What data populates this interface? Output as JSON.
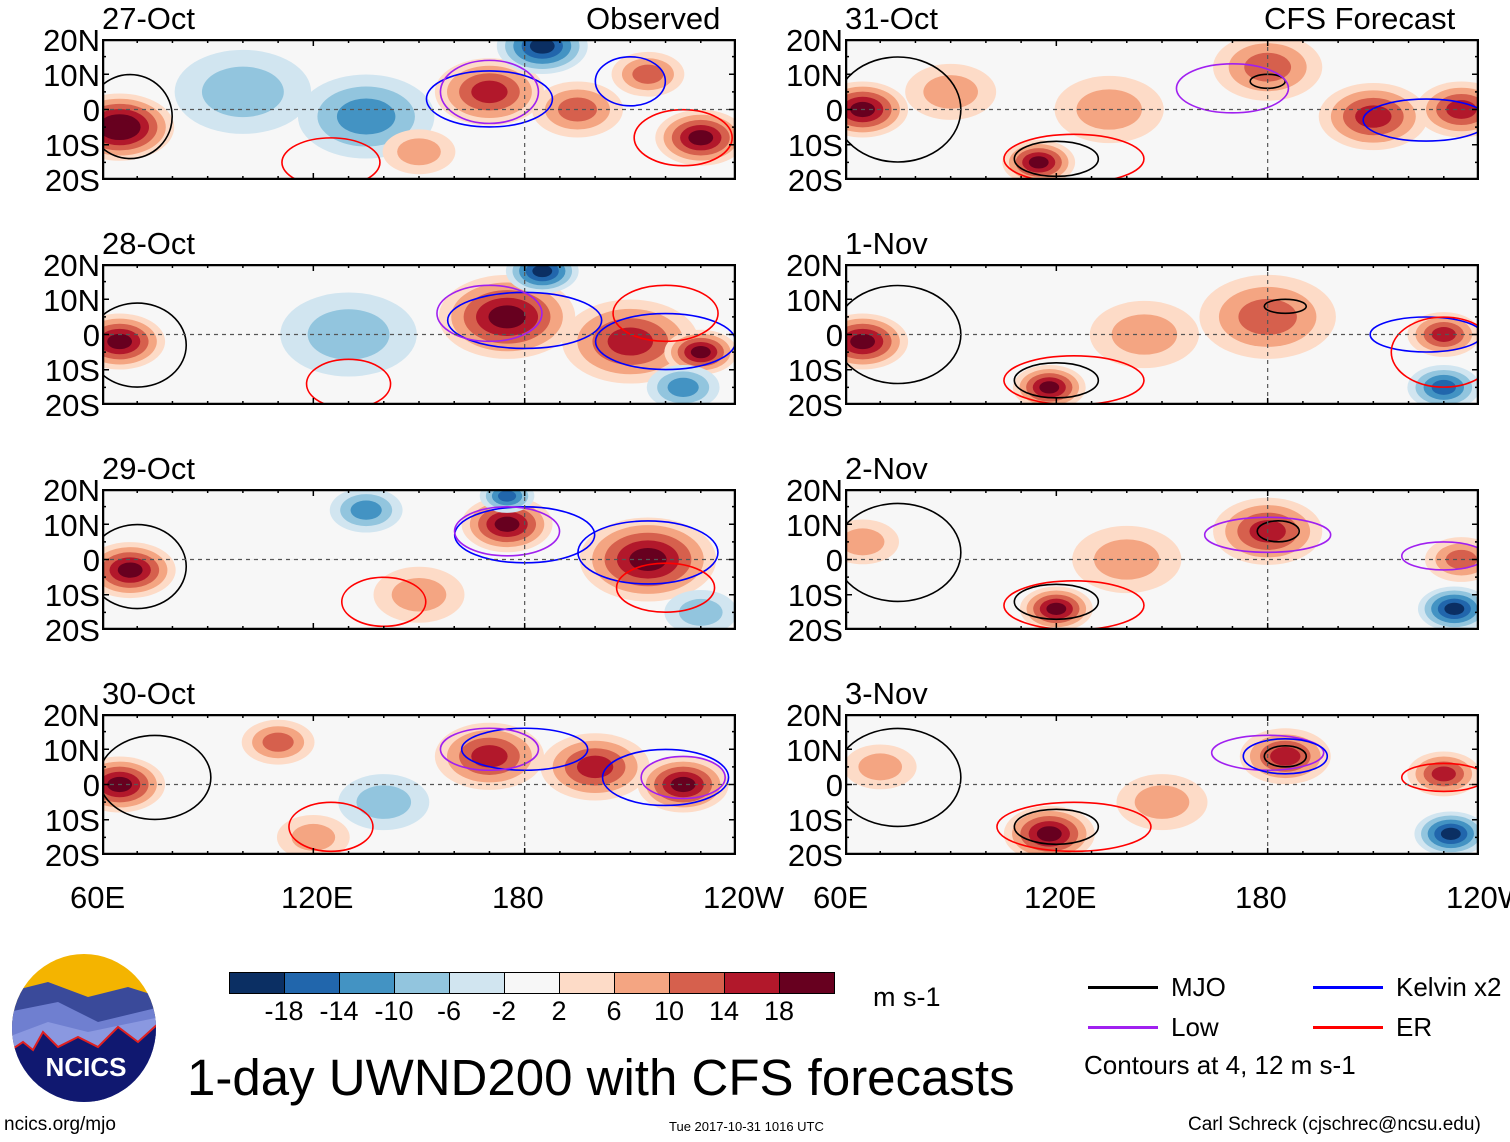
{
  "chart_data": {
    "type": "heatmap",
    "title": "1-day UWND200 with CFS forecasts",
    "units": "m s-1",
    "xlim": [
      60,
      240
    ],
    "ylim": [
      -20,
      20
    ],
    "x_ticks": [
      "60E",
      "120E",
      "180",
      "120W"
    ],
    "y_ticks": [
      "20N",
      "10N",
      "0",
      "10S",
      "20S"
    ],
    "column_labels": [
      "Observed",
      "CFS Forecast"
    ],
    "colorbar": {
      "levels": [
        -18,
        -14,
        -10,
        -6,
        -2,
        2,
        6,
        10,
        14,
        18
      ],
      "labels": [
        "-18",
        "-14",
        "-10",
        "-6",
        "-2",
        "2",
        "6",
        "10",
        "14",
        "18"
      ],
      "colors": [
        "#0b2f63",
        "#2166ac",
        "#4393c3",
        "#92c5de",
        "#d1e5f0",
        "#f7f7f7",
        "#fddbc7",
        "#f4a582",
        "#d6604d",
        "#b2182b",
        "#67001f"
      ]
    },
    "legend": [
      {
        "name": "MJO",
        "color": "#000000"
      },
      {
        "name": "Kelvin x2",
        "color": "#0000ff"
      },
      {
        "name": "Low",
        "color": "#a020f0"
      },
      {
        "name": "ER",
        "color": "#ff0000"
      }
    ],
    "contour_note": "Contours at 4, 12 m s-1",
    "panels": [
      {
        "date": "27-Oct",
        "anoms": [
          [
            65,
            -5,
            20,
            12
          ],
          [
            170,
            5,
            14,
            12
          ],
          [
            230,
            -8,
            18,
            10
          ],
          [
            215,
            10,
            8,
            8
          ],
          [
            195,
            0,
            8,
            10
          ],
          [
            185,
            18,
            -18,
            10
          ],
          [
            135,
            -2,
            -8,
            15
          ],
          [
            100,
            5,
            -6,
            15
          ],
          [
            150,
            -12,
            6,
            8
          ]
        ],
        "contours": [
          [
            68,
            -2,
            12,
            12,
            "MJO"
          ],
          [
            170,
            3,
            18,
            8,
            "Kelvin"
          ],
          [
            170,
            5,
            14,
            9,
            "Low"
          ],
          [
            225,
            -8,
            14,
            8,
            "ER"
          ],
          [
            125,
            -15,
            14,
            7,
            "ER"
          ],
          [
            210,
            8,
            10,
            7,
            "Kelvin"
          ]
        ]
      },
      {
        "date": "28-Oct",
        "anoms": [
          [
            65,
            -2,
            18,
            10
          ],
          [
            175,
            5,
            18,
            15
          ],
          [
            210,
            -2,
            14,
            15
          ],
          [
            230,
            -5,
            16,
            8
          ],
          [
            185,
            18,
            -16,
            8
          ],
          [
            130,
            0,
            -6,
            15
          ],
          [
            225,
            -15,
            -8,
            8
          ]
        ],
        "contours": [
          [
            70,
            -3,
            14,
            12,
            "MJO"
          ],
          [
            180,
            4,
            22,
            8,
            "Kelvin"
          ],
          [
            170,
            6,
            15,
            8,
            "Low"
          ],
          [
            130,
            -14,
            12,
            7,
            "ER"
          ],
          [
            220,
            -2,
            20,
            8,
            "Kelvin"
          ],
          [
            220,
            6,
            15,
            8,
            "ER"
          ]
        ]
      },
      {
        "date": "29-Oct",
        "anoms": [
          [
            68,
            -3,
            16,
            10
          ],
          [
            175,
            10,
            18,
            10
          ],
          [
            215,
            0,
            18,
            15
          ],
          [
            175,
            18,
            -14,
            6
          ],
          [
            135,
            14,
            -10,
            8
          ],
          [
            150,
            -10,
            6,
            10
          ],
          [
            230,
            -15,
            -6,
            8
          ]
        ],
        "contours": [
          [
            70,
            -2,
            14,
            12,
            "MJO"
          ],
          [
            180,
            7,
            20,
            8,
            "Kelvin"
          ],
          [
            175,
            8,
            15,
            7,
            "Low"
          ],
          [
            140,
            -12,
            12,
            7,
            "ER"
          ],
          [
            215,
            2,
            20,
            9,
            "Kelvin"
          ],
          [
            220,
            -8,
            14,
            7,
            "ER"
          ]
        ]
      },
      {
        "date": "30-Oct",
        "anoms": [
          [
            65,
            0,
            18,
            10
          ],
          [
            170,
            8,
            14,
            12
          ],
          [
            200,
            5,
            14,
            12
          ],
          [
            225,
            0,
            18,
            10
          ],
          [
            110,
            12,
            8,
            8
          ],
          [
            140,
            -5,
            -6,
            10
          ],
          [
            120,
            -15,
            6,
            8
          ]
        ],
        "contours": [
          [
            75,
            2,
            16,
            12,
            "MJO"
          ],
          [
            180,
            10,
            18,
            6,
            "Kelvin"
          ],
          [
            170,
            10,
            14,
            6,
            "Low"
          ],
          [
            125,
            -12,
            12,
            7,
            "ER"
          ],
          [
            220,
            2,
            18,
            8,
            "Kelvin"
          ],
          [
            225,
            2,
            12,
            6,
            "Low"
          ]
        ]
      },
      {
        "date": "31-Oct",
        "anoms": [
          [
            65,
            0,
            18,
            10
          ],
          [
            115,
            -15,
            16,
            8
          ],
          [
            210,
            -2,
            14,
            12
          ],
          [
            235,
            0,
            14,
            10
          ],
          [
            180,
            12,
            10,
            12
          ],
          [
            135,
            0,
            6,
            12
          ],
          [
            90,
            5,
            6,
            10
          ]
        ],
        "contours": [
          [
            75,
            0,
            18,
            15,
            "MJO"
          ],
          [
            120,
            -14,
            12,
            5,
            "MJO"
          ],
          [
            180,
            8,
            5,
            2,
            "MJO"
          ],
          [
            170,
            6,
            16,
            7,
            "Low"
          ],
          [
            225,
            -3,
            18,
            6,
            "Kelvin"
          ],
          [
            125,
            -14,
            20,
            7,
            "ER"
          ]
        ]
      },
      {
        "date": "1-Nov",
        "anoms": [
          [
            65,
            -2,
            16,
            10
          ],
          [
            118,
            -15,
            18,
            8
          ],
          [
            180,
            5,
            10,
            15
          ],
          [
            230,
            0,
            14,
            8
          ],
          [
            230,
            -15,
            -14,
            8
          ],
          [
            145,
            0,
            6,
            12
          ]
        ],
        "contours": [
          [
            75,
            0,
            18,
            14,
            "MJO"
          ],
          [
            120,
            -13,
            12,
            5,
            "MJO"
          ],
          [
            185,
            8,
            6,
            2,
            "MJO"
          ],
          [
            125,
            -13,
            20,
            7,
            "ER"
          ],
          [
            225,
            0,
            16,
            5,
            "Kelvin"
          ],
          [
            230,
            -5,
            15,
            10,
            "ER"
          ]
        ]
      },
      {
        "date": "2-Nov",
        "anoms": [
          [
            120,
            -14,
            18,
            8
          ],
          [
            180,
            8,
            12,
            12
          ],
          [
            235,
            0,
            10,
            8
          ],
          [
            233,
            -14,
            -18,
            8
          ],
          [
            140,
            0,
            6,
            12
          ],
          [
            65,
            5,
            6,
            8
          ]
        ],
        "contours": [
          [
            75,
            2,
            18,
            14,
            "MJO"
          ],
          [
            120,
            -12,
            12,
            5,
            "MJO"
          ],
          [
            183,
            8,
            6,
            3,
            "MJO"
          ],
          [
            180,
            7,
            18,
            5,
            "Low"
          ],
          [
            230,
            1,
            12,
            4,
            "Low"
          ],
          [
            125,
            -13,
            20,
            7,
            "ER"
          ]
        ]
      },
      {
        "date": "3-Nov",
        "anoms": [
          [
            118,
            -14,
            16,
            10
          ],
          [
            185,
            8,
            12,
            10
          ],
          [
            230,
            3,
            12,
            8
          ],
          [
            232,
            -14,
            -18,
            8
          ],
          [
            150,
            -5,
            6,
            10
          ],
          [
            70,
            5,
            6,
            8
          ]
        ],
        "contours": [
          [
            75,
            2,
            18,
            14,
            "MJO"
          ],
          [
            120,
            -12,
            12,
            5,
            "MJO"
          ],
          [
            185,
            8,
            6,
            3,
            "MJO"
          ],
          [
            180,
            9,
            16,
            5,
            "Low"
          ],
          [
            185,
            8,
            12,
            5,
            "Kelvin"
          ],
          [
            230,
            2,
            12,
            4,
            "ER"
          ],
          [
            125,
            -12,
            22,
            7,
            "ER"
          ]
        ]
      }
    ]
  },
  "footer": {
    "site": "ncics.org/mjo",
    "timestamp": "Tue 2017-10-31 1016 UTC",
    "author": "Carl Schreck (cjschrec@ncsu.edu)",
    "logo_text": "NCICS"
  }
}
